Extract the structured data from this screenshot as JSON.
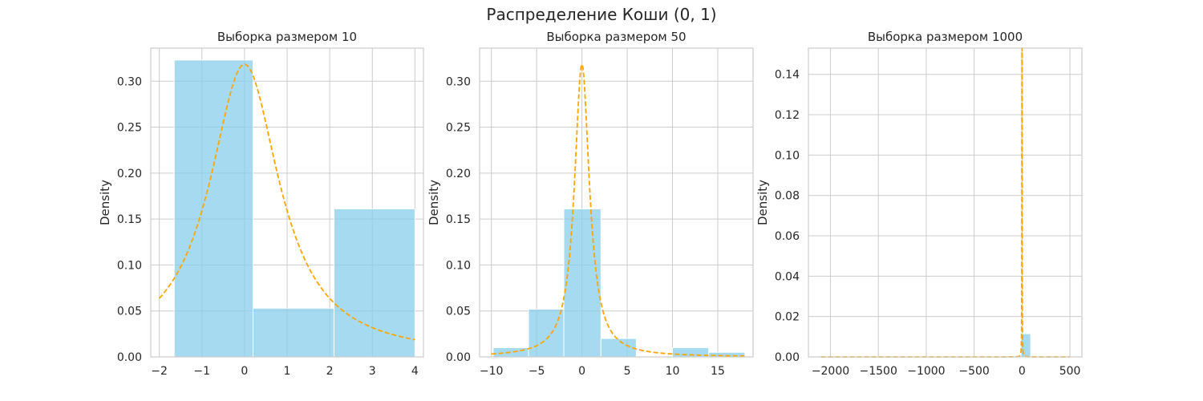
{
  "figure": {
    "suptitle": "Распределение Коши (0, 1)"
  },
  "colors": {
    "bar": "#87CEEB",
    "curve": "#FFA500",
    "grid": "#cccccc",
    "axes_edge": "#cccccc"
  },
  "chart_data": [
    {
      "type": "bar",
      "title": "Выборка размером 10",
      "xlabel": "",
      "ylabel": "Density",
      "xlim": [
        -2.2,
        4.2
      ],
      "ylim": [
        0,
        0.336
      ],
      "xticks": [
        -2,
        -1,
        0,
        1,
        2,
        3,
        4
      ],
      "xtick_labels": [
        "−2",
        "−1",
        "0",
        "1",
        "2",
        "3",
        "4"
      ],
      "yticks": [
        0,
        0.05,
        0.1,
        0.15,
        0.2,
        0.25,
        0.3
      ],
      "ytick_labels": [
        "0.00",
        "0.05",
        "0.10",
        "0.15",
        "0.20",
        "0.25",
        "0.30"
      ],
      "bins": [
        {
          "x0": -1.65,
          "x1": 0.2,
          "density": 0.323
        },
        {
          "x0": 0.2,
          "x1": 2.1,
          "density": 0.053
        },
        {
          "x0": 2.1,
          "x1": 4.0,
          "density": 0.161
        }
      ],
      "curve": {
        "name": "Cauchy(0, 1) pdf",
        "x_range": [
          -2,
          4
        ],
        "style": "dashed"
      }
    },
    {
      "type": "bar",
      "title": "Выборка размером 50",
      "xlabel": "",
      "ylabel": "Density",
      "xlim": [
        -11.3,
        18.9
      ],
      "ylim": [
        0,
        0.336
      ],
      "xticks": [
        -10,
        -5,
        0,
        5,
        10,
        15
      ],
      "xtick_labels": [
        "−10",
        "−5",
        "0",
        "5",
        "10",
        "15"
      ],
      "yticks": [
        0,
        0.05,
        0.1,
        0.15,
        0.2,
        0.25,
        0.3
      ],
      "ytick_labels": [
        "0.00",
        "0.05",
        "0.10",
        "0.15",
        "0.20",
        "0.25",
        "0.30"
      ],
      "bins": [
        {
          "x0": -9.8,
          "x1": -5.9,
          "density": 0.01
        },
        {
          "x0": -5.9,
          "x1": -2.0,
          "density": 0.052
        },
        {
          "x0": -2.0,
          "x1": 2.1,
          "density": 0.161
        },
        {
          "x0": 2.1,
          "x1": 6.0,
          "density": 0.02
        },
        {
          "x0": 6.0,
          "x1": 10.0,
          "density": 0.0
        },
        {
          "x0": 10.0,
          "x1": 14.0,
          "density": 0.01
        },
        {
          "x0": 14.0,
          "x1": 18.0,
          "density": 0.005
        }
      ],
      "curve": {
        "name": "Cauchy(0, 1) pdf",
        "x_range": [
          -10,
          18
        ],
        "style": "dashed"
      }
    },
    {
      "type": "bar",
      "title": "Выборка размером 1000",
      "xlabel": "",
      "ylabel": "Density",
      "xlim": [
        -2230,
        625
      ],
      "ylim": [
        0,
        0.153
      ],
      "xticks": [
        -2000,
        -1500,
        -1000,
        -500,
        0,
        500
      ],
      "xtick_labels": [
        "−2000",
        "−1500",
        "−1000",
        "−500",
        "0",
        "500"
      ],
      "yticks": [
        0,
        0.02,
        0.04,
        0.06,
        0.08,
        0.1,
        0.12,
        0.14
      ],
      "ytick_labels": [
        "0.00",
        "0.02",
        "0.04",
        "0.06",
        "0.08",
        "0.10",
        "0.12",
        "0.14"
      ],
      "bins": [
        {
          "x0": -2100,
          "x1": -10,
          "density": 8e-05
        },
        {
          "x0": -10,
          "x1": 90,
          "density": 0.0115
        },
        {
          "x0": 90,
          "x1": 500,
          "density": 8e-05
        }
      ],
      "curve": {
        "name": "Cauchy(0, 1) pdf",
        "x_range": [
          -2100,
          500
        ],
        "style": "dashed"
      }
    }
  ]
}
